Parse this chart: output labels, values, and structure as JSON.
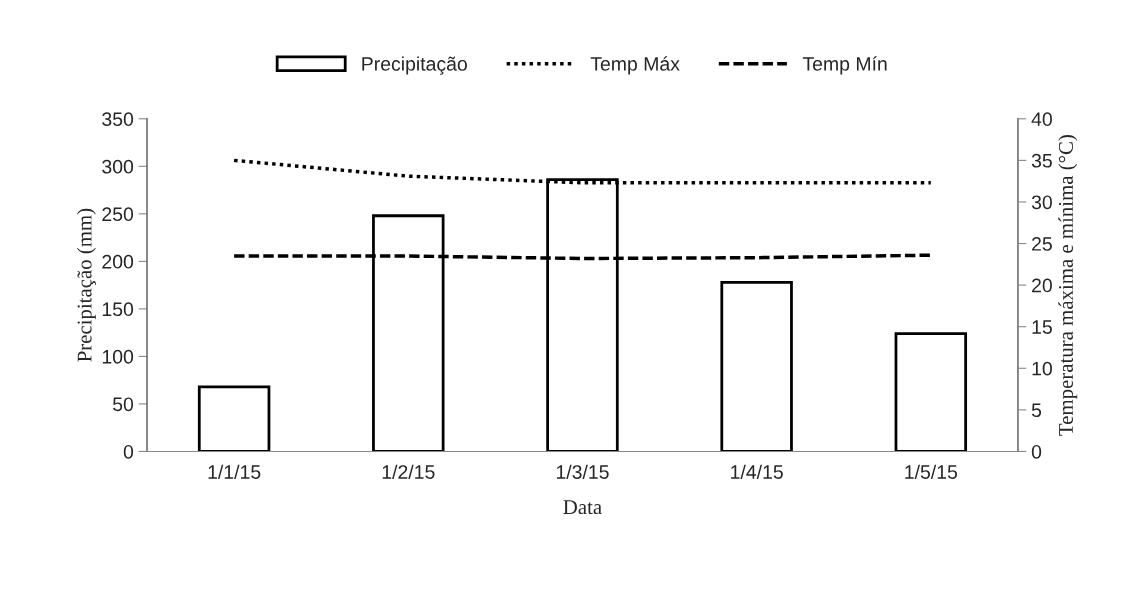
{
  "chart_data": {
    "type": "bar",
    "categories": [
      "1/1/15",
      "1/2/15",
      "1/3/15",
      "1/4/15",
      "1/5/15"
    ],
    "xlabel": "Data",
    "ylabel": "Precipitação (mm)",
    "y2label": "Temperatura máxima e mínima (°C)",
    "series": [
      {
        "name": "Precipitação",
        "color": "#000000",
        "values": [
          68,
          248,
          286,
          178,
          124
        ]
      },
      {
        "name": "Temp Máx",
        "type": "line",
        "axis": "y2",
        "color": "#000000",
        "line_style": "dotted",
        "values": [
          35.0,
          33.1,
          32.3,
          32.3,
          32.3
        ]
      },
      {
        "name": "Temp Mín",
        "type": "line",
        "axis": "y2",
        "color": "#000000",
        "line_style": "dashed",
        "values": [
          23.5,
          23.5,
          23.2,
          23.3,
          23.6
        ]
      }
    ],
    "ylim": [
      0,
      350
    ],
    "yticks": [
      0,
      50,
      100,
      150,
      200,
      250,
      300,
      350
    ],
    "y2lim": [
      0,
      40
    ],
    "y2ticks": [
      0,
      5,
      10,
      15,
      20,
      25,
      30,
      35,
      40
    ],
    "grid": false,
    "legend": "top",
    "marker": "none"
  }
}
